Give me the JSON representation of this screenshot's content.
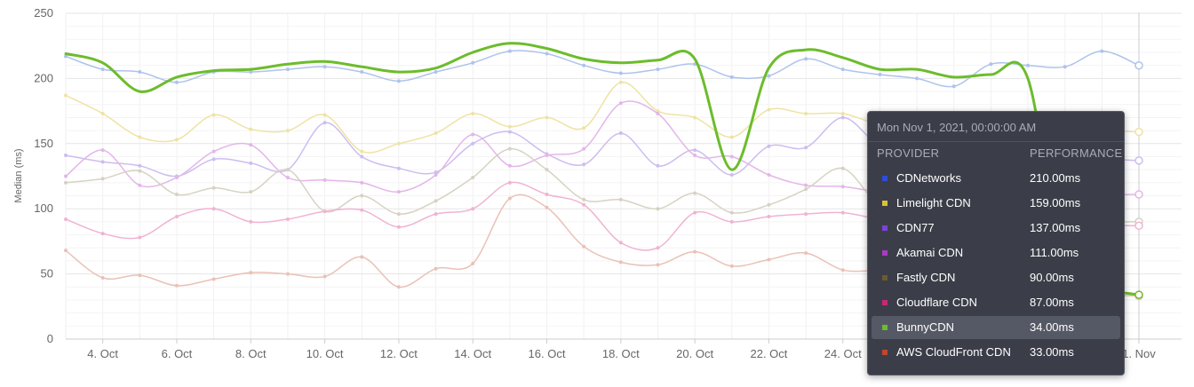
{
  "chart_data": {
    "type": "line",
    "ylabel": "Median (ms)",
    "ylim": [
      0,
      250
    ],
    "yticks": [
      0,
      50,
      100,
      150,
      200,
      250
    ],
    "x_start": "2021-10-03",
    "x_end": "2021-11-01",
    "x_tick_labels": [
      "4. Oct",
      "6. Oct",
      "8. Oct",
      "10. Oct",
      "12. Oct",
      "14. Oct",
      "16. Oct",
      "18. Oct",
      "20. Oct",
      "22. Oct",
      "24. Oct",
      "1. Nov"
    ],
    "x_tick_dates": [
      "2021-10-04",
      "2021-10-06",
      "2021-10-08",
      "2021-10-10",
      "2021-10-12",
      "2021-10-14",
      "2021-10-16",
      "2021-10-18",
      "2021-10-20",
      "2021-10-22",
      "2021-10-24",
      "2021-11-01"
    ],
    "grid": true,
    "series": [
      {
        "name": "CDNetworks",
        "color": "#aec3ec",
        "values": [
          217,
          207,
          205,
          197,
          205,
          205,
          207,
          209,
          205,
          198,
          205,
          212,
          221,
          219,
          210,
          204,
          207,
          211,
          201,
          202,
          215,
          207,
          203,
          200,
          194,
          211,
          210,
          209,
          221,
          210
        ]
      },
      {
        "name": "Limelight CDN",
        "color": "#efe3a3",
        "values": [
          187,
          173,
          155,
          153,
          172,
          161,
          160,
          172,
          144,
          150,
          158,
          173,
          163,
          170,
          162,
          197,
          175,
          170,
          155,
          176,
          173,
          173,
          165,
          166,
          162,
          160,
          160,
          160,
          160,
          159
        ]
      },
      {
        "name": "CDN77",
        "color": "#cdbdf0",
        "values": [
          141,
          136,
          133,
          125,
          138,
          135,
          130,
          166,
          140,
          131,
          128,
          150,
          159,
          142,
          134,
          158,
          133,
          145,
          126,
          148,
          147,
          170,
          148,
          143,
          140,
          140,
          140,
          138,
          138,
          137
        ]
      },
      {
        "name": "Akamai CDN",
        "color": "#e3b6e9",
        "values": [
          125,
          145,
          118,
          124,
          144,
          149,
          124,
          122,
          120,
          113,
          126,
          157,
          133,
          141,
          146,
          181,
          173,
          141,
          140,
          126,
          118,
          117,
          113,
          112,
          112,
          111,
          111,
          111,
          111,
          111
        ]
      },
      {
        "name": "Fastly CDN",
        "color": "#d6d2c3",
        "values": [
          120,
          123,
          129,
          111,
          116,
          113,
          130,
          98,
          110,
          96,
          106,
          124,
          146,
          130,
          107,
          107,
          100,
          112,
          97,
          103,
          115,
          131,
          102,
          95,
          92,
          91,
          90,
          90,
          90,
          90
        ]
      },
      {
        "name": "Cloudflare CDN",
        "color": "#f0b3d2",
        "values": [
          92,
          81,
          78,
          94,
          100,
          90,
          92,
          98,
          99,
          86,
          96,
          100,
          120,
          111,
          103,
          74,
          70,
          97,
          90,
          94,
          96,
          97,
          92,
          90,
          89,
          88,
          88,
          87,
          87,
          87
        ]
      },
      {
        "name": "BunnyCDN",
        "color": "#6cbc2c",
        "values": [
          219,
          212,
          190,
          201,
          206,
          207,
          211,
          213,
          209,
          205,
          208,
          220,
          227,
          223,
          215,
          212,
          214,
          215,
          130,
          208,
          222,
          216,
          207,
          207,
          201,
          203,
          200,
          45,
          38,
          34
        ]
      },
      {
        "name": "AWS CloudFront CDN",
        "color": "#eac1b6",
        "values": [
          68,
          47,
          49,
          41,
          46,
          51,
          50,
          48,
          63,
          40,
          54,
          58,
          108,
          101,
          71,
          59,
          57,
          67,
          56,
          61,
          66,
          53,
          52,
          45,
          40,
          38,
          36,
          35,
          34,
          33
        ]
      }
    ]
  },
  "tooltip": {
    "timestamp": "Mon Nov 1, 2021, 00:00:00 AM",
    "col_provider": "PROVIDER",
    "col_performance": "PERFORMANCE",
    "highlight_index": 6,
    "rows": [
      {
        "name": "CDNetworks",
        "value": "210.00ms",
        "color": "#2f4bd8"
      },
      {
        "name": "Limelight CDN",
        "value": "159.00ms",
        "color": "#d9c23a"
      },
      {
        "name": "CDN77",
        "value": "137.00ms",
        "color": "#7a44d8"
      },
      {
        "name": "Akamai CDN",
        "value": "111.00ms",
        "color": "#a83bc2"
      },
      {
        "name": "Fastly CDN",
        "value": "90.00ms",
        "color": "#6b5a2c"
      },
      {
        "name": "Cloudflare CDN",
        "value": "87.00ms",
        "color": "#c92678"
      },
      {
        "name": "BunnyCDN",
        "value": "34.00ms",
        "color": "#6cbc2c"
      },
      {
        "name": "AWS CloudFront CDN",
        "value": "33.00ms",
        "color": "#c2452e"
      }
    ]
  }
}
